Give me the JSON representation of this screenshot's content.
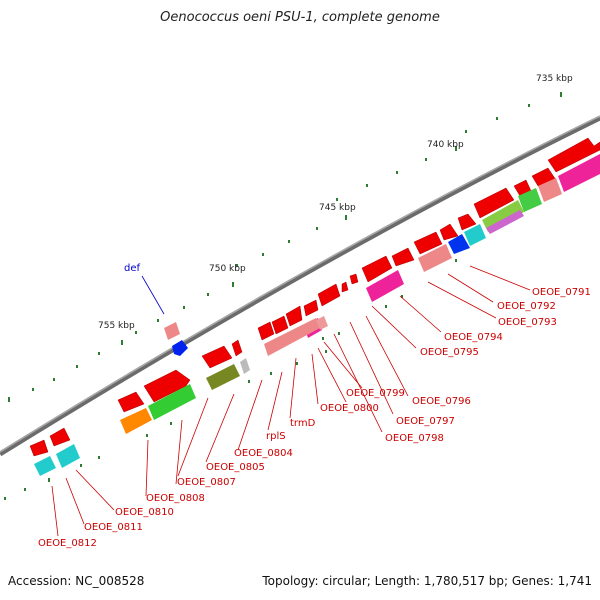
{
  "header": {
    "title": "Oenococcus oeni PSU-1, complete genome"
  },
  "ruler": {
    "labels": [
      "735 kbp",
      "740 kbp",
      "745 kbp",
      "750 kbp",
      "755 kbp"
    ]
  },
  "gene_labels": {
    "OEOE_0791": "OEOE_0791",
    "OEOE_0792": "OEOE_0792",
    "OEOE_0793": "OEOE_0793",
    "OEOE_0794": "OEOE_0794",
    "OEOE_0795": "OEOE_0795",
    "OEOE_0796": "OEOE_0796",
    "OEOE_0797": "OEOE_0797",
    "OEOE_0798": "OEOE_0798",
    "OEOE_0799": "OEOE_0799",
    "OEOE_0800": "OEOE_0800",
    "trmD": "trmD",
    "rplS": "rplS",
    "OEOE_0804": "OEOE_0804",
    "OEOE_0805": "OEOE_0805",
    "OEOE_0807": "OEOE_0807",
    "OEOE_0808": "OEOE_0808",
    "OEOE_0810": "OEOE_0810",
    "OEOE_0811": "OEOE_0811",
    "OEOE_0812": "OEOE_0812",
    "def": "def"
  },
  "footer": {
    "accession": "Accession: NC_008528",
    "summary": "Topology: circular; Length: 1,780,517 bp; Genes: 1,741"
  },
  "colors": {
    "backbone": "#777777",
    "gene": "#ee0000",
    "label": "#cc0000",
    "ticks": "#2e7d32",
    "def_label": "#0000cc"
  }
}
